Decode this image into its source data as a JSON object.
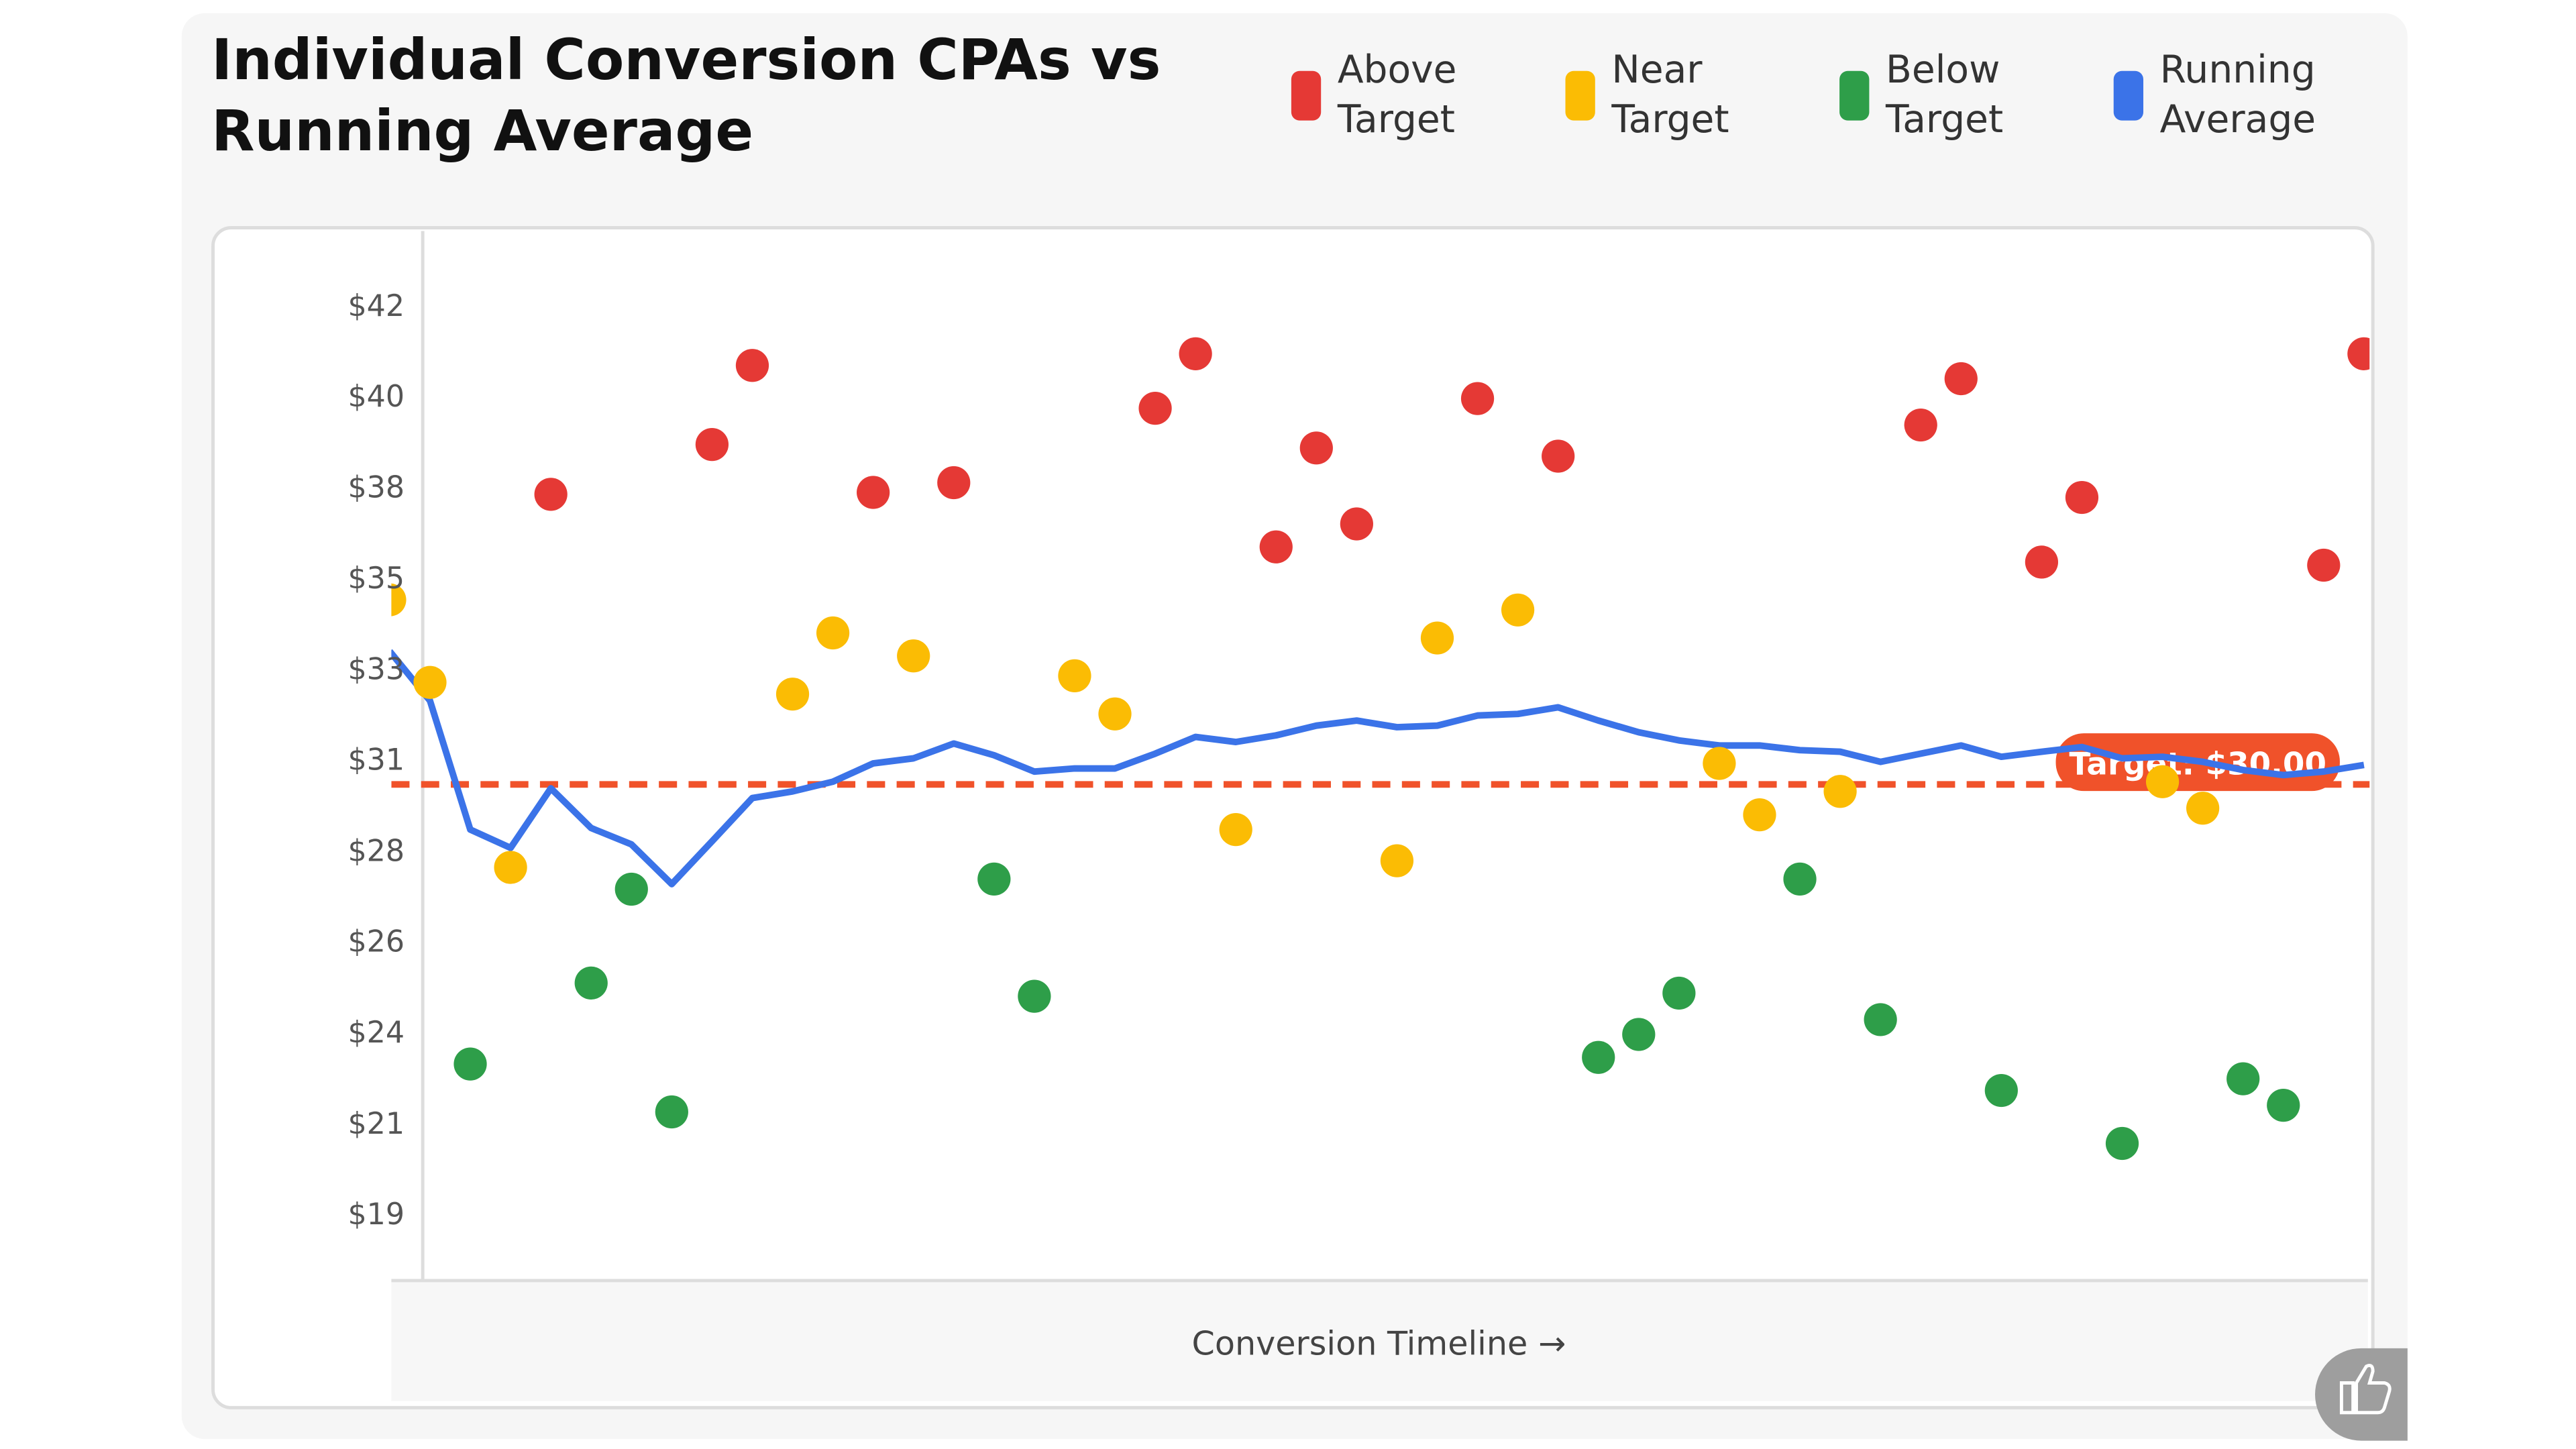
{
  "chart_data": {
    "type": "scatter",
    "title": "Individual Conversion CPAs vs Running Average",
    "x_label": "Conversion Timeline →",
    "ylim": [
      17.3,
      44.0
    ],
    "yticks": [
      {
        "value": 19,
        "label": "$19"
      },
      {
        "value": 21.33,
        "label": "$21"
      },
      {
        "value": 23.67,
        "label": "$24"
      },
      {
        "value": 26,
        "label": "$26"
      },
      {
        "value": 28.33,
        "label": "$28"
      },
      {
        "value": 30.67,
        "label": "$31"
      },
      {
        "value": 33,
        "label": "$33"
      },
      {
        "value": 35.33,
        "label": "$35"
      },
      {
        "value": 37.67,
        "label": "$38"
      },
      {
        "value": 40,
        "label": "$40"
      },
      {
        "value": 42.33,
        "label": "$42"
      }
    ],
    "target": {
      "value": 30,
      "label": "Target: $30.00",
      "color": "#f0522a"
    },
    "series": [
      {
        "name": "Above Target",
        "color": "#e53935",
        "values": [
          null,
          null,
          null,
          null,
          37.45,
          null,
          null,
          null,
          38.73,
          40.76,
          null,
          null,
          37.5,
          null,
          37.75,
          null,
          null,
          null,
          null,
          39.66,
          41.06,
          null,
          36.1,
          38.64,
          36.69,
          null,
          null,
          39.91,
          null,
          38.43,
          null,
          null,
          null,
          null,
          null,
          null,
          null,
          null,
          39.23,
          40.42,
          null,
          35.71,
          37.37,
          null,
          null,
          null,
          null,
          null,
          35.63,
          41.06
        ]
      },
      {
        "name": "Near Target",
        "color": "#fbbc04",
        "values": [
          34.74,
          32.62,
          null,
          27.87,
          null,
          null,
          null,
          null,
          null,
          null,
          32.32,
          33.89,
          null,
          33.3,
          null,
          null,
          null,
          32.79,
          31.81,
          null,
          null,
          28.84,
          null,
          null,
          null,
          28.04,
          33.76,
          null,
          34.48,
          null,
          null,
          null,
          null,
          30.54,
          29.22,
          null,
          29.82,
          null,
          null,
          null,
          null,
          null,
          null,
          null,
          30.07,
          29.39,
          null,
          null,
          null,
          null
        ]
      },
      {
        "name": "Below Target",
        "color": "#2e9e49",
        "values": [
          null,
          null,
          22.82,
          null,
          null,
          24.9,
          27.31,
          21.59,
          null,
          null,
          null,
          null,
          null,
          null,
          null,
          27.57,
          24.56,
          null,
          null,
          null,
          null,
          null,
          null,
          null,
          null,
          null,
          null,
          null,
          null,
          null,
          22.99,
          23.58,
          24.64,
          null,
          null,
          27.57,
          null,
          23.96,
          null,
          null,
          22.14,
          null,
          null,
          20.78,
          null,
          null,
          22.44,
          21.76,
          null,
          null
        ]
      },
      {
        "name": "Running Average",
        "color": "#3b73e8",
        "type": "line",
        "values": [
          33.42,
          32.15,
          28.84,
          28.37,
          29.9,
          28.88,
          28.46,
          27.44,
          28.54,
          29.65,
          29.82,
          30.07,
          30.54,
          30.67,
          31.05,
          30.75,
          30.33,
          30.41,
          30.41,
          30.79,
          31.22,
          31.09,
          31.26,
          31.51,
          31.64,
          31.47,
          31.51,
          31.77,
          31.81,
          31.98,
          31.64,
          31.34,
          31.13,
          31.0,
          31.0,
          30.88,
          30.84,
          30.58,
          30.79,
          31.0,
          30.71,
          30.84,
          30.96,
          30.67,
          30.71,
          30.58,
          30.37,
          30.24,
          30.33,
          30.5
        ]
      }
    ]
  }
}
